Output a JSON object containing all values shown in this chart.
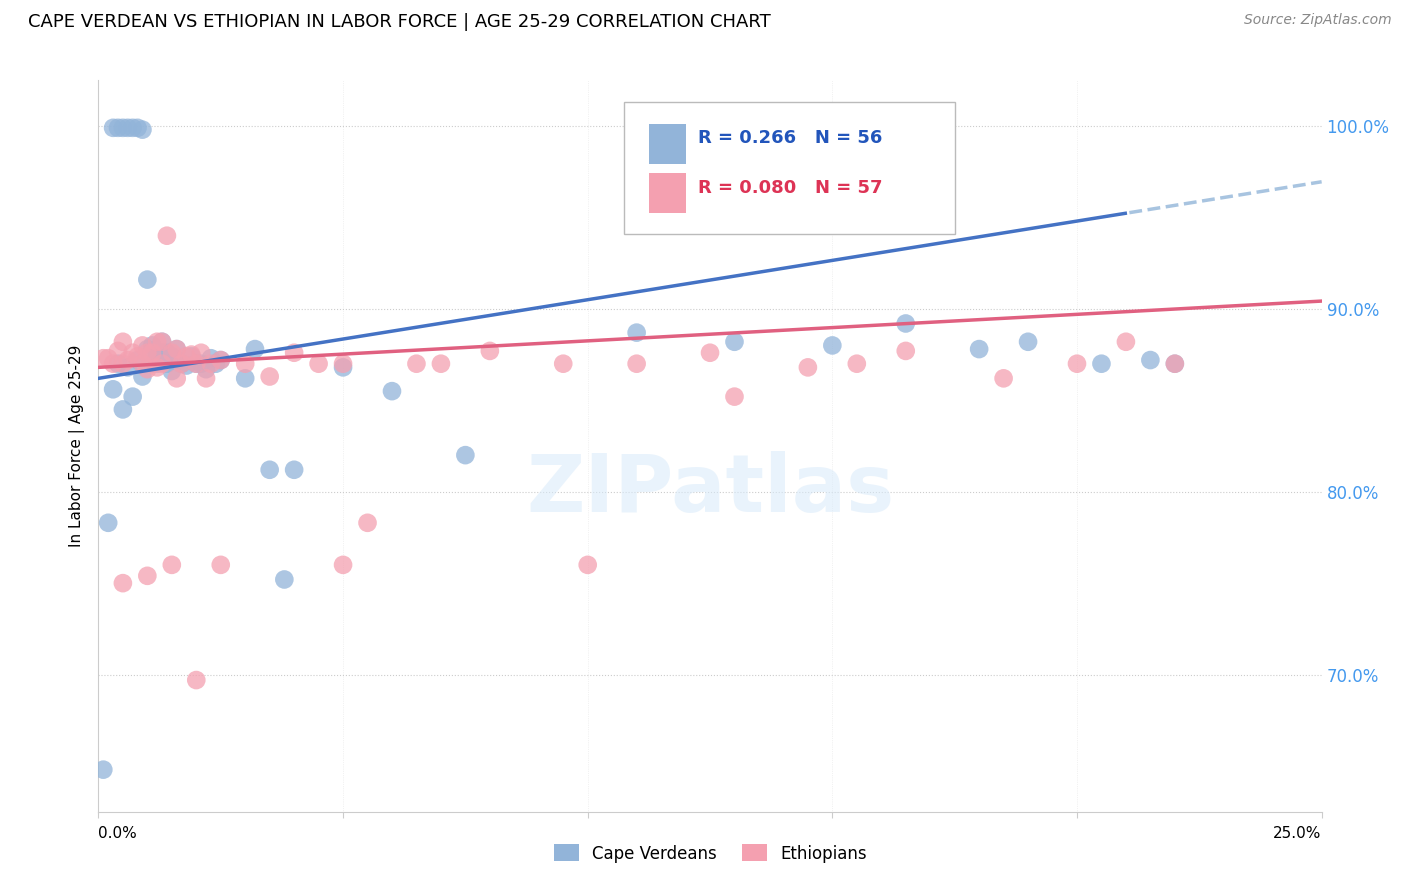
{
  "title": "CAPE VERDEAN VS ETHIOPIAN IN LABOR FORCE | AGE 25-29 CORRELATION CHART",
  "source_text": "Source: ZipAtlas.com",
  "ylabel": "In Labor Force | Age 25-29",
  "ytick_labels": [
    "100.0%",
    "90.0%",
    "80.0%",
    "70.0%"
  ],
  "ytick_values": [
    1.0,
    0.9,
    0.8,
    0.7
  ],
  "xlim": [
    0.0,
    0.25
  ],
  "ylim": [
    0.625,
    1.025
  ],
  "legend_blue_r": "R = 0.266",
  "legend_blue_n": "N = 56",
  "legend_pink_r": "R = 0.080",
  "legend_pink_n": "N = 57",
  "legend_label_blue": "Cape Verdeans",
  "legend_label_pink": "Ethiopians",
  "blue_color": "#92B4D9",
  "pink_color": "#F4A0B0",
  "trendline_blue_color": "#4472C4",
  "trendline_pink_color": "#E06080",
  "trendline_blue_dashed_color": "#A8C4E0",
  "grid_color": "#CCCCCC",
  "blue_x": [
    0.001,
    0.002,
    0.003,
    0.003,
    0.004,
    0.004,
    0.005,
    0.005,
    0.006,
    0.006,
    0.007,
    0.007,
    0.008,
    0.008,
    0.009,
    0.009,
    0.01,
    0.01,
    0.011,
    0.011,
    0.012,
    0.012,
    0.013,
    0.013,
    0.014,
    0.014,
    0.015,
    0.015,
    0.016,
    0.016,
    0.017,
    0.018,
    0.019,
    0.02,
    0.021,
    0.022,
    0.023,
    0.024,
    0.025,
    0.03,
    0.032,
    0.035,
    0.038,
    0.04,
    0.05,
    0.06,
    0.075,
    0.11,
    0.13,
    0.15,
    0.165,
    0.18,
    0.19,
    0.205,
    0.215,
    0.22
  ],
  "blue_y": [
    0.648,
    0.783,
    0.856,
    0.999,
    0.87,
    0.999,
    0.845,
    0.999,
    0.868,
    0.999,
    0.852,
    0.999,
    0.872,
    0.999,
    0.863,
    0.998,
    0.878,
    0.916,
    0.87,
    0.88,
    0.875,
    0.87,
    0.882,
    0.876,
    0.876,
    0.87,
    0.874,
    0.866,
    0.878,
    0.872,
    0.87,
    0.869,
    0.874,
    0.87,
    0.87,
    0.867,
    0.873,
    0.87,
    0.872,
    0.862,
    0.878,
    0.812,
    0.752,
    0.812,
    0.868,
    0.855,
    0.82,
    0.887,
    0.882,
    0.88,
    0.892,
    0.878,
    0.882,
    0.87,
    0.872,
    0.87
  ],
  "pink_x": [
    0.001,
    0.002,
    0.003,
    0.004,
    0.005,
    0.005,
    0.006,
    0.007,
    0.008,
    0.009,
    0.009,
    0.01,
    0.01,
    0.011,
    0.012,
    0.012,
    0.013,
    0.013,
    0.014,
    0.015,
    0.016,
    0.016,
    0.017,
    0.018,
    0.019,
    0.02,
    0.021,
    0.022,
    0.023,
    0.025,
    0.03,
    0.035,
    0.04,
    0.045,
    0.05,
    0.055,
    0.065,
    0.07,
    0.08,
    0.095,
    0.11,
    0.125,
    0.13,
    0.145,
    0.155,
    0.165,
    0.185,
    0.2,
    0.21,
    0.22,
    0.005,
    0.01,
    0.015,
    0.02,
    0.025,
    0.05,
    0.1
  ],
  "pink_y": [
    0.873,
    0.873,
    0.87,
    0.877,
    0.882,
    0.87,
    0.872,
    0.876,
    0.874,
    0.88,
    0.87,
    0.876,
    0.867,
    0.876,
    0.868,
    0.882,
    0.882,
    0.87,
    0.94,
    0.876,
    0.878,
    0.862,
    0.87,
    0.874,
    0.875,
    0.87,
    0.876,
    0.862,
    0.87,
    0.872,
    0.87,
    0.863,
    0.876,
    0.87,
    0.87,
    0.783,
    0.87,
    0.87,
    0.877,
    0.87,
    0.87,
    0.876,
    0.852,
    0.868,
    0.87,
    0.877,
    0.862,
    0.87,
    0.882,
    0.87,
    0.75,
    0.754,
    0.76,
    0.697,
    0.76,
    0.76,
    0.76
  ]
}
